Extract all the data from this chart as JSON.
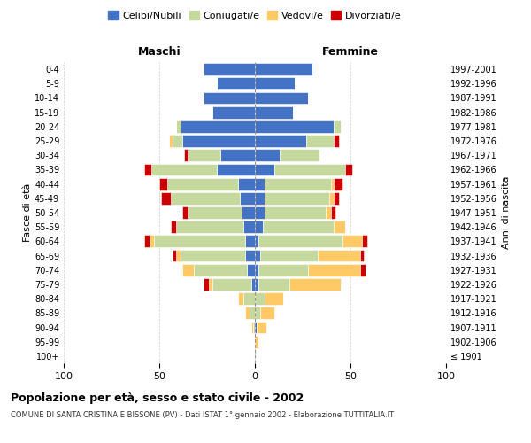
{
  "age_groups": [
    "100+",
    "95-99",
    "90-94",
    "85-89",
    "80-84",
    "75-79",
    "70-74",
    "65-69",
    "60-64",
    "55-59",
    "50-54",
    "45-49",
    "40-44",
    "35-39",
    "30-34",
    "25-29",
    "20-24",
    "15-19",
    "10-14",
    "5-9",
    "0-4"
  ],
  "birth_years": [
    "≤ 1901",
    "1902-1906",
    "1907-1911",
    "1912-1916",
    "1917-1921",
    "1922-1926",
    "1927-1931",
    "1932-1936",
    "1937-1941",
    "1942-1946",
    "1947-1951",
    "1952-1956",
    "1957-1961",
    "1962-1966",
    "1967-1971",
    "1972-1976",
    "1977-1981",
    "1982-1986",
    "1987-1991",
    "1992-1996",
    "1997-2001"
  ],
  "colors": {
    "celibi": "#4472C4",
    "coniugati": "#c5d89e",
    "vedovi": "#ffc966",
    "divorziati": "#cc0000"
  },
  "maschi": {
    "celibi": [
      0,
      0,
      0,
      0,
      0,
      2,
      4,
      5,
      5,
      6,
      7,
      8,
      9,
      20,
      18,
      38,
      39,
      22,
      27,
      20,
      27
    ],
    "coniugati": [
      0,
      0,
      1,
      3,
      6,
      20,
      28,
      34,
      48,
      35,
      28,
      36,
      37,
      34,
      17,
      5,
      2,
      0,
      0,
      0,
      0
    ],
    "vedovi": [
      0,
      0,
      1,
      2,
      3,
      2,
      6,
      2,
      2,
      0,
      0,
      0,
      0,
      0,
      0,
      2,
      0,
      0,
      0,
      0,
      0
    ],
    "divorziati": [
      0,
      0,
      0,
      0,
      0,
      3,
      0,
      2,
      3,
      3,
      3,
      5,
      4,
      4,
      2,
      0,
      0,
      0,
      0,
      0,
      0
    ]
  },
  "femmine": {
    "celibi": [
      0,
      0,
      1,
      0,
      0,
      2,
      2,
      3,
      2,
      4,
      5,
      5,
      5,
      10,
      13,
      27,
      41,
      20,
      28,
      21,
      30
    ],
    "coniugati": [
      0,
      0,
      0,
      3,
      5,
      16,
      26,
      30,
      44,
      37,
      32,
      34,
      35,
      37,
      21,
      14,
      4,
      0,
      0,
      0,
      0
    ],
    "vedovi": [
      0,
      2,
      5,
      7,
      10,
      27,
      27,
      22,
      10,
      6,
      3,
      2,
      1,
      0,
      0,
      0,
      0,
      0,
      0,
      0,
      0
    ],
    "divorziati": [
      0,
      0,
      0,
      0,
      0,
      0,
      3,
      2,
      3,
      0,
      2,
      3,
      5,
      4,
      0,
      3,
      0,
      0,
      0,
      0,
      0
    ]
  },
  "xlim": 100,
  "title_main": "Popolazione per età, sesso e stato civile - 2002",
  "title_sub": "COMUNE DI SANTA CRISTINA E BISSONE (PV) - Dati ISTAT 1° gennaio 2002 - Elaborazione TUTTITALIA.IT",
  "ylabel": "Fasce di età",
  "ylabel_right": "Anni di nascita",
  "xlabel_left": "Maschi",
  "xlabel_right": "Femmine",
  "legend_labels": [
    "Celibi/Nubili",
    "Coniugati/e",
    "Vedovi/e",
    "Divorziati/e"
  ],
  "bg_color": "#ffffff",
  "grid_color": "#cccccc"
}
